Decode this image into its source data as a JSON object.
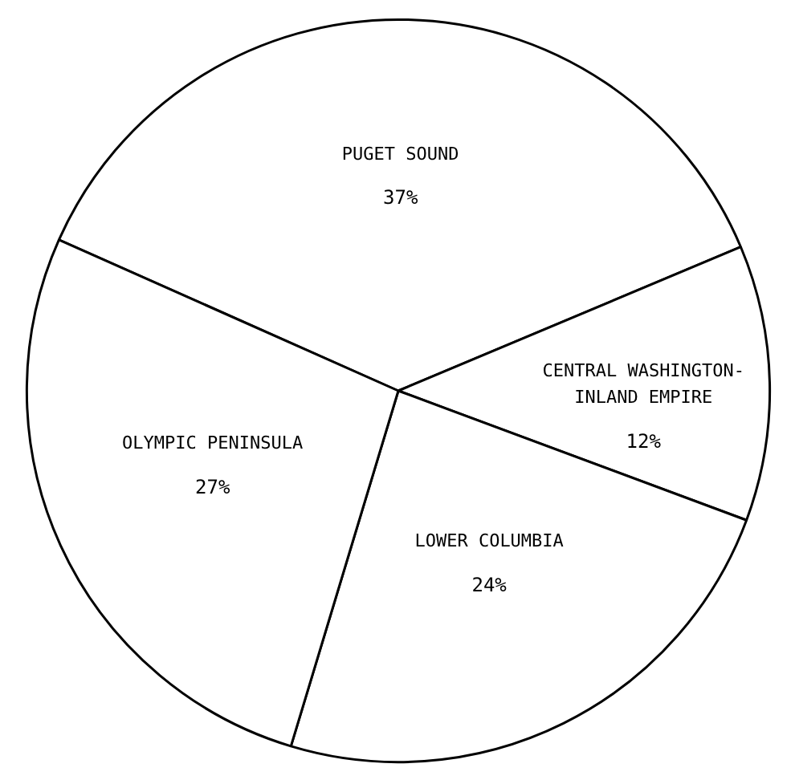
{
  "chart_data": {
    "type": "pie",
    "categories": [
      "PUGET SOUND",
      "CENTRAL WASHINGTON-INLAND EMPIRE",
      "LOWER COLUMBIA",
      "OLYMPIC PENINSULA"
    ],
    "values": [
      37,
      12,
      24,
      27
    ],
    "value_labels": [
      "37%",
      "12%",
      "24%",
      "27%"
    ],
    "colors": [
      "#ffffff",
      "#ffffff",
      "#ffffff",
      "#ffffff"
    ]
  }
}
